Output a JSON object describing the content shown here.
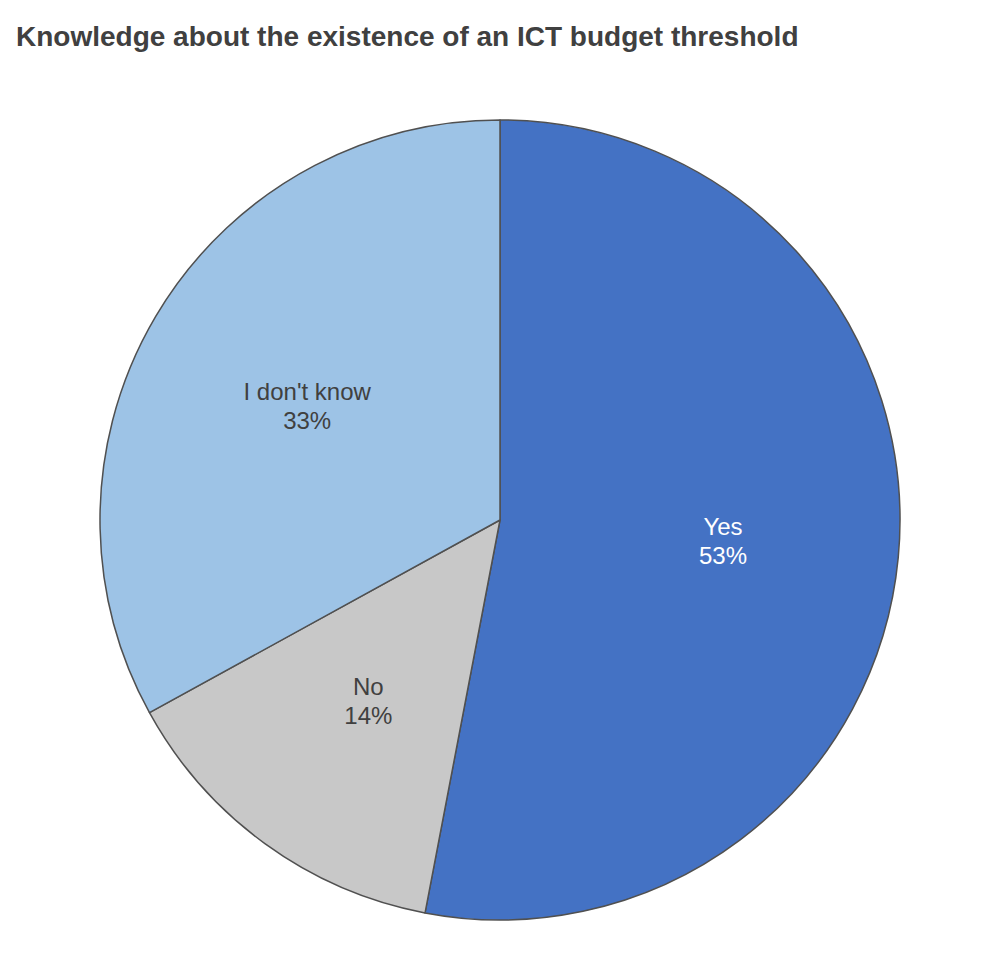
{
  "chart_data": {
    "type": "pie",
    "title": "Knowledge about the existence of an ICT budget threshold",
    "categories": [
      "Yes",
      "No",
      "I don't know"
    ],
    "values": [
      53,
      14,
      33
    ],
    "value_labels": [
      "53%",
      "14%",
      "33%"
    ],
    "colors": [
      "#4472C4",
      "#C8C8C8",
      "#9DC3E6"
    ],
    "data_labels": true
  }
}
